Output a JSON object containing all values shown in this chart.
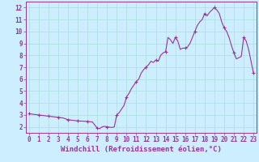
{
  "x": [
    0,
    0.5,
    1,
    1.5,
    2,
    2.5,
    3,
    3.5,
    4,
    4.5,
    5,
    5.5,
    6,
    6.5,
    7,
    7.25,
    7.5,
    7.75,
    8,
    8.25,
    8.5,
    8.75,
    9,
    9.25,
    9.5,
    9.75,
    10,
    10.25,
    10.5,
    10.75,
    11,
    11.25,
    11.5,
    11.75,
    12,
    12.25,
    12.5,
    12.75,
    13,
    13.25,
    13.5,
    13.75,
    14,
    14.25,
    14.5,
    14.75,
    15,
    15.25,
    15.5,
    15.75,
    16,
    16.25,
    16.5,
    16.75,
    17,
    17.25,
    17.5,
    17.75,
    18,
    18.25,
    18.5,
    18.75,
    19,
    19.25,
    19.5,
    19.75,
    20,
    20.25,
    20.5,
    20.75,
    21,
    21.25,
    21.5,
    21.75,
    22,
    22.25,
    22.5,
    22.75,
    23
  ],
  "y": [
    3.1,
    3.05,
    3.0,
    2.95,
    2.9,
    2.85,
    2.8,
    2.75,
    2.6,
    2.55,
    2.5,
    2.48,
    2.45,
    2.42,
    1.9,
    1.85,
    2.0,
    2.05,
    2.0,
    1.98,
    1.95,
    2.0,
    3.0,
    3.2,
    3.5,
    3.8,
    4.5,
    4.8,
    5.2,
    5.5,
    5.8,
    6.0,
    6.5,
    6.8,
    7.0,
    7.2,
    7.5,
    7.4,
    7.6,
    7.5,
    8.0,
    8.2,
    8.3,
    9.5,
    9.3,
    9.0,
    9.5,
    9.2,
    8.5,
    8.6,
    8.6,
    8.7,
    9.0,
    9.5,
    10.0,
    10.5,
    10.8,
    11.0,
    11.5,
    11.3,
    11.6,
    11.8,
    12.0,
    11.8,
    11.5,
    10.8,
    10.3,
    10.0,
    9.5,
    8.8,
    8.2,
    7.7,
    7.8,
    7.9,
    9.5,
    9.2,
    8.5,
    7.5,
    6.5
  ],
  "line_color": "#993399",
  "marker": "+",
  "marker_size": 3,
  "marker_indices": [
    0,
    2,
    4,
    6,
    8,
    10,
    12,
    14,
    16,
    18,
    20,
    22,
    24,
    26,
    28,
    30,
    32,
    34,
    36,
    38,
    40,
    42,
    44,
    46,
    48,
    50,
    52,
    54,
    56,
    58,
    60,
    62,
    64,
    66,
    68,
    70,
    72,
    74,
    76,
    78
  ],
  "xlim_min": -0.3,
  "xlim_max": 23.3,
  "ylim_min": 1.5,
  "ylim_max": 12.5,
  "yticks": [
    2,
    3,
    4,
    5,
    6,
    7,
    8,
    9,
    10,
    11,
    12
  ],
  "xticks": [
    0,
    1,
    2,
    3,
    4,
    5,
    6,
    7,
    8,
    9,
    10,
    11,
    12,
    13,
    14,
    15,
    16,
    17,
    18,
    19,
    20,
    21,
    22,
    23
  ],
  "xlabel": "Windchill (Refroidissement éolien,°C)",
  "bg_color": "#cceeff",
  "grid_color": "#aadddd",
  "line_width": 0.8,
  "tick_fontsize": 5.5,
  "xlabel_fontsize": 6.5
}
